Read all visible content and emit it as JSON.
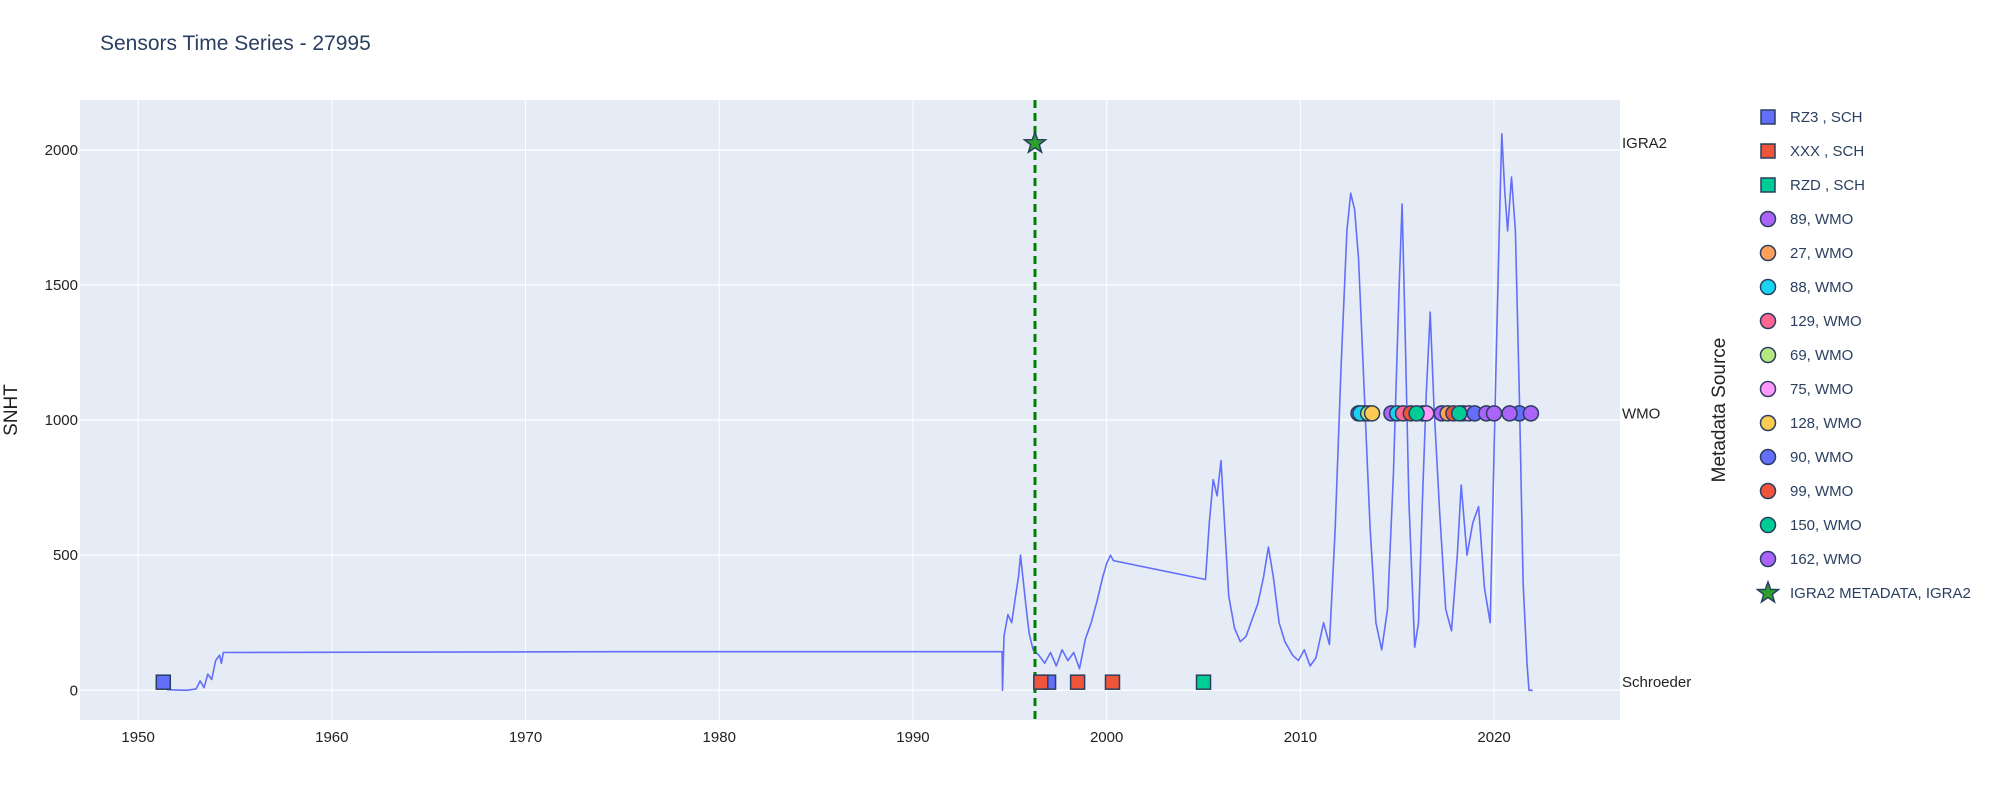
{
  "chart_data": {
    "type": "line",
    "title": "Sensors Time Series - 27995",
    "ylabel": "SNHT",
    "xlabel": "",
    "right_axis_title": "Metadata Source",
    "xlim": [
      1947,
      2026.5
    ],
    "ylim": [
      -110,
      2185
    ],
    "xticks": [
      1950,
      1960,
      1970,
      1980,
      1990,
      2000,
      2010,
      2020
    ],
    "yticks": [
      0,
      500,
      1000,
      1500,
      2000
    ],
    "right_ticks": [
      {
        "label": "IGRA2",
        "value": 2025
      },
      {
        "label": "WMO",
        "value": 1025
      },
      {
        "label": "Schroeder",
        "value": 30
      }
    ],
    "grid": true,
    "legend_position": "right",
    "vline": {
      "x": 1996.3,
      "color": "#008000",
      "style": "dashed"
    },
    "colors": {
      "plot_bg": "#e5ecf6",
      "line": "#636efa"
    },
    "series": [
      {
        "name": "",
        "type": "line",
        "color": "#636efa",
        "points": [
          [
            1951.3,
            15
          ],
          [
            1951.5,
            2
          ],
          [
            1952.5,
            0
          ],
          [
            1953.0,
            5
          ],
          [
            1953.2,
            35
          ],
          [
            1953.4,
            10
          ],
          [
            1953.6,
            60
          ],
          [
            1953.8,
            40
          ],
          [
            1954.0,
            110
          ],
          [
            1954.2,
            130
          ],
          [
            1954.3,
            100
          ],
          [
            1954.4,
            140
          ],
          [
            1974.5,
            143
          ],
          [
            1994.6,
            143
          ],
          [
            1994.62,
            0
          ],
          [
            1994.7,
            200
          ],
          [
            1994.9,
            280
          ],
          [
            1995.1,
            250
          ],
          [
            1995.3,
            350
          ],
          [
            1995.45,
            420
          ],
          [
            1995.55,
            500
          ],
          [
            1995.7,
            400
          ],
          [
            1995.85,
            300
          ],
          [
            1996.0,
            210
          ],
          [
            1996.2,
            150
          ],
          [
            1996.5,
            130
          ],
          [
            1996.8,
            100
          ],
          [
            1997.1,
            140
          ],
          [
            1997.4,
            90
          ],
          [
            1997.7,
            150
          ],
          [
            1998.0,
            110
          ],
          [
            1998.3,
            140
          ],
          [
            1998.6,
            80
          ],
          [
            1998.9,
            190
          ],
          [
            1999.2,
            250
          ],
          [
            1999.5,
            330
          ],
          [
            1999.8,
            420
          ],
          [
            2000.0,
            470
          ],
          [
            2000.2,
            500
          ],
          [
            2000.35,
            480
          ],
          [
            2005.1,
            410
          ],
          [
            2005.3,
            620
          ],
          [
            2005.5,
            780
          ],
          [
            2005.7,
            720
          ],
          [
            2005.9,
            850
          ],
          [
            2006.1,
            600
          ],
          [
            2006.3,
            350
          ],
          [
            2006.6,
            230
          ],
          [
            2006.9,
            180
          ],
          [
            2007.2,
            200
          ],
          [
            2007.5,
            260
          ],
          [
            2007.8,
            320
          ],
          [
            2008.1,
            420
          ],
          [
            2008.35,
            530
          ],
          [
            2008.6,
            420
          ],
          [
            2008.9,
            250
          ],
          [
            2009.2,
            180
          ],
          [
            2009.6,
            130
          ],
          [
            2009.9,
            110
          ],
          [
            2010.2,
            150
          ],
          [
            2010.5,
            90
          ],
          [
            2010.8,
            120
          ],
          [
            2011.2,
            250
          ],
          [
            2011.5,
            170
          ],
          [
            2011.8,
            600
          ],
          [
            2012.1,
            1200
          ],
          [
            2012.4,
            1700
          ],
          [
            2012.6,
            1840
          ],
          [
            2012.8,
            1780
          ],
          [
            2013.0,
            1600
          ],
          [
            2013.3,
            1100
          ],
          [
            2013.6,
            600
          ],
          [
            2013.9,
            250
          ],
          [
            2014.2,
            150
          ],
          [
            2014.5,
            300
          ],
          [
            2014.8,
            800
          ],
          [
            2015.1,
            1500
          ],
          [
            2015.25,
            1800
          ],
          [
            2015.4,
            1350
          ],
          [
            2015.6,
            700
          ],
          [
            2015.9,
            160
          ],
          [
            2016.1,
            250
          ],
          [
            2016.3,
            700
          ],
          [
            2016.5,
            1100
          ],
          [
            2016.7,
            1400
          ],
          [
            2016.9,
            1050
          ],
          [
            2017.2,
            650
          ],
          [
            2017.5,
            300
          ],
          [
            2017.8,
            220
          ],
          [
            2018.1,
            500
          ],
          [
            2018.3,
            760
          ],
          [
            2018.6,
            500
          ],
          [
            2018.9,
            620
          ],
          [
            2019.2,
            680
          ],
          [
            2019.5,
            380
          ],
          [
            2019.8,
            250
          ],
          [
            2020.1,
            1200
          ],
          [
            2020.3,
            1800
          ],
          [
            2020.4,
            2060
          ],
          [
            2020.55,
            1850
          ],
          [
            2020.7,
            1700
          ],
          [
            2020.9,
            1900
          ],
          [
            2021.1,
            1700
          ],
          [
            2021.3,
            1100
          ],
          [
            2021.5,
            400
          ],
          [
            2021.7,
            100
          ],
          [
            2021.8,
            0
          ],
          [
            2022.0,
            0
          ]
        ]
      }
    ],
    "markers": [
      {
        "name": "RZ3 , SCH",
        "symbol": "square",
        "color": "#636efa",
        "points": [
          [
            1951.3,
            30
          ],
          [
            1997.0,
            30
          ]
        ]
      },
      {
        "name": "XXX , SCH",
        "symbol": "square",
        "color": "#ef553b",
        "points": [
          [
            1996.6,
            30
          ],
          [
            1998.5,
            30
          ],
          [
            2000.3,
            30
          ]
        ]
      },
      {
        "name": "RZD , SCH",
        "symbol": "square",
        "color": "#00cc96",
        "points": [
          [
            2005.0,
            30
          ]
        ]
      },
      {
        "name": "89, WMO",
        "symbol": "circle",
        "color": "#ab63fa",
        "points": [
          [
            2013.0,
            1025
          ],
          [
            2014.7,
            1025
          ],
          [
            2017.3,
            1025
          ]
        ]
      },
      {
        "name": "27, WMO",
        "symbol": "circle",
        "color": "#ffa15a",
        "points": [
          [
            2013.3,
            1025
          ],
          [
            2017.6,
            1025
          ]
        ]
      },
      {
        "name": "88, WMO",
        "symbol": "circle",
        "color": "#19d3f3",
        "points": [
          [
            2013.1,
            1025
          ],
          [
            2015.0,
            1025
          ]
        ]
      },
      {
        "name": "129, WMO",
        "symbol": "circle",
        "color": "#ff6692",
        "points": [
          [
            2015.3,
            1025
          ],
          [
            2018.4,
            1025
          ]
        ]
      },
      {
        "name": "69, WMO",
        "symbol": "circle",
        "color": "#b6e880",
        "points": [
          [
            2013.5,
            1025
          ],
          [
            2016.3,
            1025
          ]
        ]
      },
      {
        "name": "75, WMO",
        "symbol": "circle",
        "color": "#ff97ff",
        "points": [
          [
            2016.5,
            1025
          ],
          [
            2018.7,
            1025
          ]
        ]
      },
      {
        "name": "128, WMO",
        "symbol": "circle",
        "color": "#fecb52",
        "points": [
          [
            2013.7,
            1025
          ]
        ]
      },
      {
        "name": "90, WMO",
        "symbol": "circle",
        "color": "#636efa",
        "points": [
          [
            2019.0,
            1025
          ],
          [
            2021.3,
            1025
          ]
        ]
      },
      {
        "name": "99, WMO",
        "symbol": "circle",
        "color": "#ef553b",
        "points": [
          [
            2015.7,
            1025
          ],
          [
            2017.9,
            1025
          ]
        ]
      },
      {
        "name": "150, WMO",
        "symbol": "circle",
        "color": "#00cc96",
        "points": [
          [
            2016.0,
            1025
          ],
          [
            2018.2,
            1025
          ]
        ]
      },
      {
        "name": "162, WMO",
        "symbol": "circle",
        "color": "#ab63fa",
        "points": [
          [
            2019.6,
            1025
          ],
          [
            2020.0,
            1025
          ],
          [
            2020.8,
            1025
          ],
          [
            2021.9,
            1025
          ]
        ]
      },
      {
        "name": "IGRA2 METADATA, IGRA2",
        "symbol": "star",
        "color": "#2ca02c",
        "points": [
          [
            1996.3,
            2025
          ]
        ]
      }
    ]
  }
}
